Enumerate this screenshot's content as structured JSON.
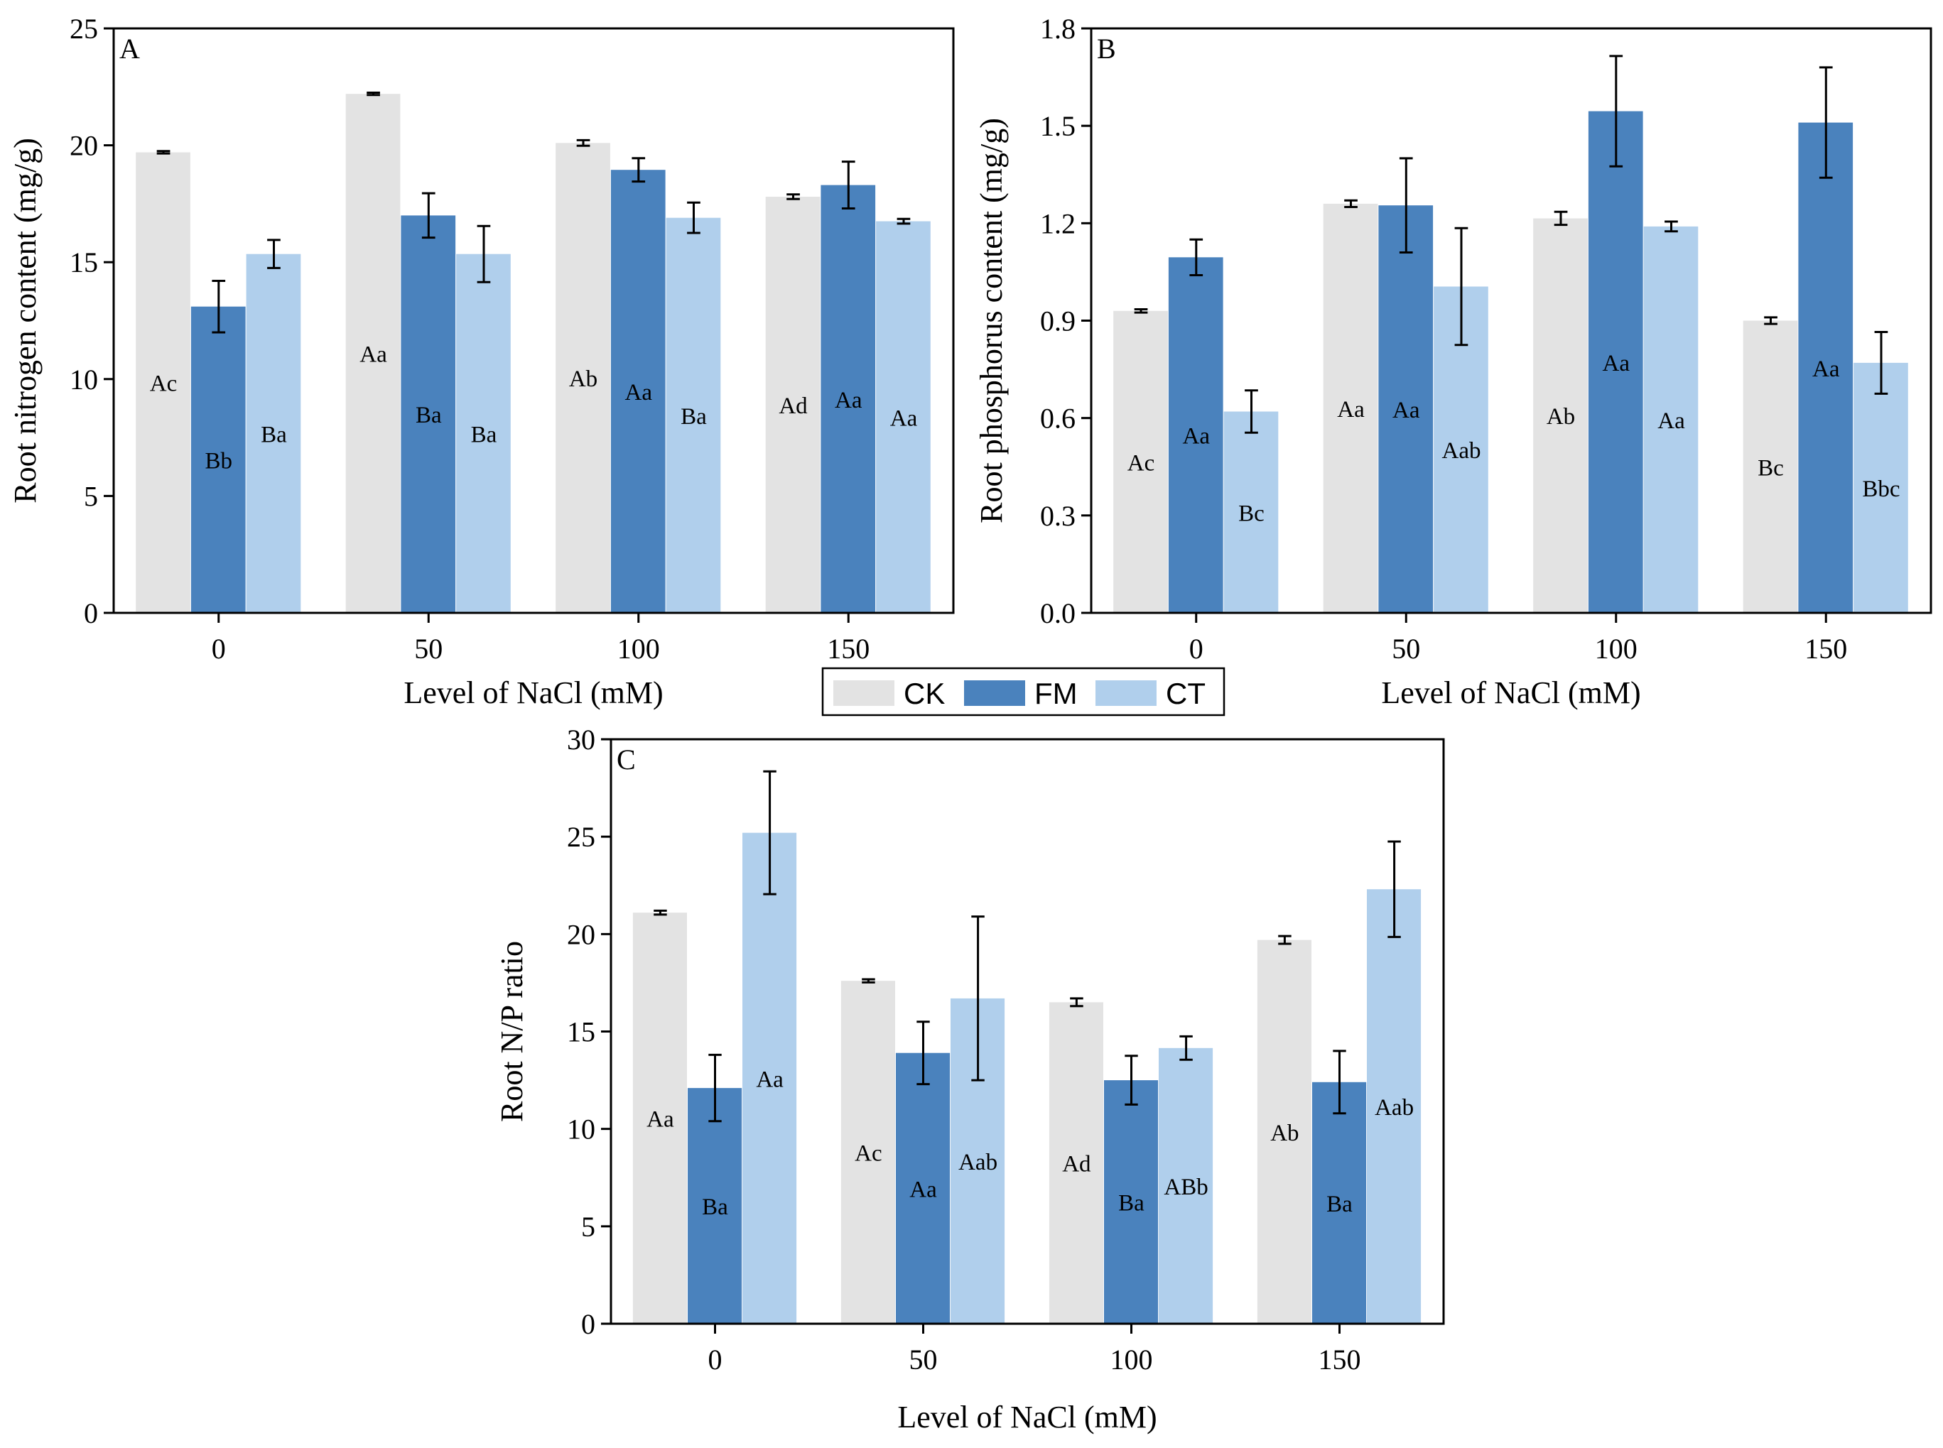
{
  "colors": {
    "CK": "#e3e3e3",
    "FM": "#4a82bd",
    "CT": "#b0cfec"
  },
  "legend": {
    "items": [
      "CK",
      "FM",
      "CT"
    ]
  },
  "chart_data": [
    {
      "type": "bar",
      "panel": "A",
      "title": "",
      "categories": [
        "0",
        "50",
        "100",
        "150"
      ],
      "xlabel": "Level of NaCl (mM)",
      "ylabel": "Root nitrogen content (mg/g)",
      "ylim": [
        0,
        25
      ],
      "yticks": [
        "0",
        "5",
        "10",
        "15",
        "20",
        "25"
      ],
      "series": [
        {
          "name": "CK",
          "values": [
            19.7,
            22.2,
            20.1,
            17.8
          ],
          "errors": [
            0.05,
            0.05,
            0.12,
            0.1
          ],
          "labels": [
            "Ac",
            "Aa",
            "Ab",
            "Ad"
          ]
        },
        {
          "name": "FM",
          "values": [
            13.1,
            17.0,
            18.95,
            18.3
          ],
          "errors": [
            1.1,
            0.95,
            0.5,
            1.0
          ],
          "labels": [
            "Bb",
            "Ba",
            "Aa",
            "Aa"
          ]
        },
        {
          "name": "CT",
          "values": [
            15.35,
            15.35,
            16.9,
            16.75
          ],
          "errors": [
            0.6,
            1.2,
            0.65,
            0.1
          ],
          "labels": [
            "Ba",
            "Ba",
            "Ba",
            "Aa"
          ]
        }
      ]
    },
    {
      "type": "bar",
      "panel": "B",
      "title": "",
      "categories": [
        "0",
        "50",
        "100",
        "150"
      ],
      "xlabel": "Level of NaCl (mM)",
      "ylabel": "Root phosphorus content (mg/g)",
      "ylim": [
        0,
        1.8
      ],
      "yticks": [
        "0.0",
        "0.3",
        "0.6",
        "0.9",
        "1.2",
        "1.5",
        "1.8"
      ],
      "series": [
        {
          "name": "CK",
          "values": [
            0.93,
            1.26,
            1.215,
            0.9
          ],
          "errors": [
            0.005,
            0.01,
            0.02,
            0.01
          ],
          "labels": [
            "Ac",
            "Aa",
            "Ab",
            "Bc"
          ]
        },
        {
          "name": "FM",
          "values": [
            1.095,
            1.255,
            1.545,
            1.51
          ],
          "errors": [
            0.055,
            0.145,
            0.17,
            0.17
          ],
          "labels": [
            "Aa",
            "Aa",
            "Aa",
            "Aa"
          ]
        },
        {
          "name": "CT",
          "values": [
            0.62,
            1.005,
            1.19,
            0.77
          ],
          "errors": [
            0.065,
            0.18,
            0.015,
            0.095
          ],
          "labels": [
            "Bc",
            "Aab",
            "Aa",
            "Bbc"
          ]
        }
      ]
    },
    {
      "type": "bar",
      "panel": "C",
      "title": "",
      "categories": [
        "0",
        "50",
        "100",
        "150"
      ],
      "xlabel": "Level of NaCl (mM)",
      "ylabel": "Root N/P ratio",
      "ylim": [
        0,
        30
      ],
      "yticks": [
        "0",
        "5",
        "10",
        "15",
        "20",
        "25",
        "30"
      ],
      "series": [
        {
          "name": "CK",
          "values": [
            21.1,
            17.6,
            16.5,
            19.7
          ],
          "errors": [
            0.1,
            0.08,
            0.2,
            0.2
          ],
          "labels": [
            "Aa",
            "Ac",
            "Ad",
            "Ab"
          ]
        },
        {
          "name": "FM",
          "values": [
            12.1,
            13.9,
            12.5,
            12.4
          ],
          "errors": [
            1.7,
            1.6,
            1.25,
            1.6
          ],
          "labels": [
            "Ba",
            "Aa",
            "Ba",
            "Ba"
          ]
        },
        {
          "name": "CT",
          "values": [
            25.2,
            16.7,
            14.15,
            22.3
          ],
          "errors": [
            3.15,
            4.2,
            0.6,
            2.45
          ],
          "labels": [
            "Aa",
            "Aab",
            "ABb",
            "Aab"
          ]
        }
      ]
    }
  ]
}
